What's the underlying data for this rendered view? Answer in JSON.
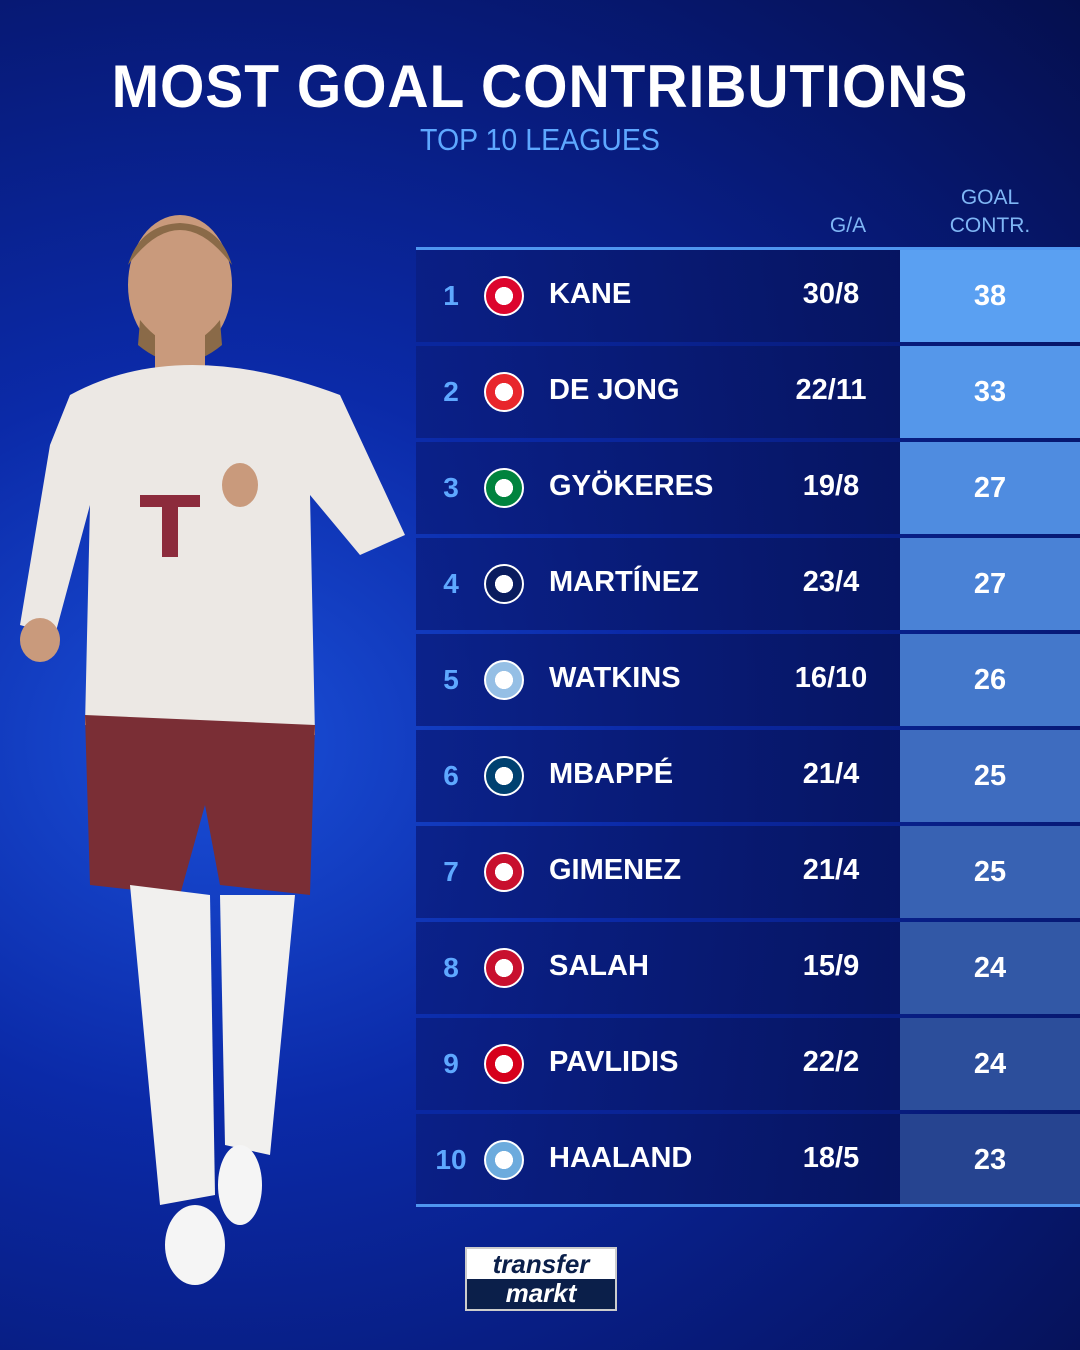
{
  "title": "MOST GOAL CONTRIBUTIONS",
  "subtitle": "TOP 10 LEAGUES",
  "columns": {
    "ga": "G/A",
    "goal_contr": "GOAL\nCONTR.",
    "goal_contr_line1": "GOAL",
    "goal_contr_line2": "CONTR."
  },
  "rows": [
    {
      "rank": "1",
      "name": "KANE",
      "ga": "30/8",
      "total": "38",
      "club_icon": "bayern-munich-crest",
      "logo_color": "#dc052d",
      "cell_color": "#5aa0f2"
    },
    {
      "rank": "2",
      "name": "DE JONG",
      "ga": "22/11",
      "total": "33",
      "club_icon": "psv-crest",
      "logo_color": "#e8262c",
      "cell_color": "#5597ea"
    },
    {
      "rank": "3",
      "name": "GYÖKERES",
      "ga": "19/8",
      "total": "27",
      "club_icon": "sporting-cp-crest",
      "logo_color": "#00833e",
      "cell_color": "#4f8ce0"
    },
    {
      "rank": "4",
      "name": "MARTÍNEZ",
      "ga": "23/4",
      "total": "27",
      "club_icon": "inter-milan-crest",
      "logo_color": "#0a1c5e",
      "cell_color": "#4a82d6"
    },
    {
      "rank": "5",
      "name": "WATKINS",
      "ga": "16/10",
      "total": "26",
      "club_icon": "aston-villa-crest",
      "logo_color": "#95bfe5",
      "cell_color": "#4478cb"
    },
    {
      "rank": "6",
      "name": "MBAPPÉ",
      "ga": "21/4",
      "total": "25",
      "club_icon": "psg-crest",
      "logo_color": "#004170",
      "cell_color": "#3e6cbf"
    },
    {
      "rank": "7",
      "name": "GIMENEZ",
      "ga": "21/4",
      "total": "25",
      "club_icon": "feyenoord-crest",
      "logo_color": "#c8102e",
      "cell_color": "#3862b3"
    },
    {
      "rank": "8",
      "name": "SALAH",
      "ga": "15/9",
      "total": "24",
      "club_icon": "liverpool-crest",
      "logo_color": "#c8102e",
      "cell_color": "#3258a6"
    },
    {
      "rank": "9",
      "name": "PAVLIDIS",
      "ga": "22/2",
      "total": "24",
      "club_icon": "az-alkmaar-crest",
      "logo_color": "#d6001c",
      "cell_color": "#2c4e9b"
    },
    {
      "rank": "10",
      "name": "HAALAND",
      "ga": "18/5",
      "total": "23",
      "club_icon": "manchester-city-crest",
      "logo_color": "#6cabdd",
      "cell_color": "#264490"
    }
  ],
  "brand": {
    "logo_line1": "transfer",
    "logo_line2": "markt"
  },
  "colors": {
    "accent": "#5ea8ff",
    "rule": "#4f96f0"
  }
}
